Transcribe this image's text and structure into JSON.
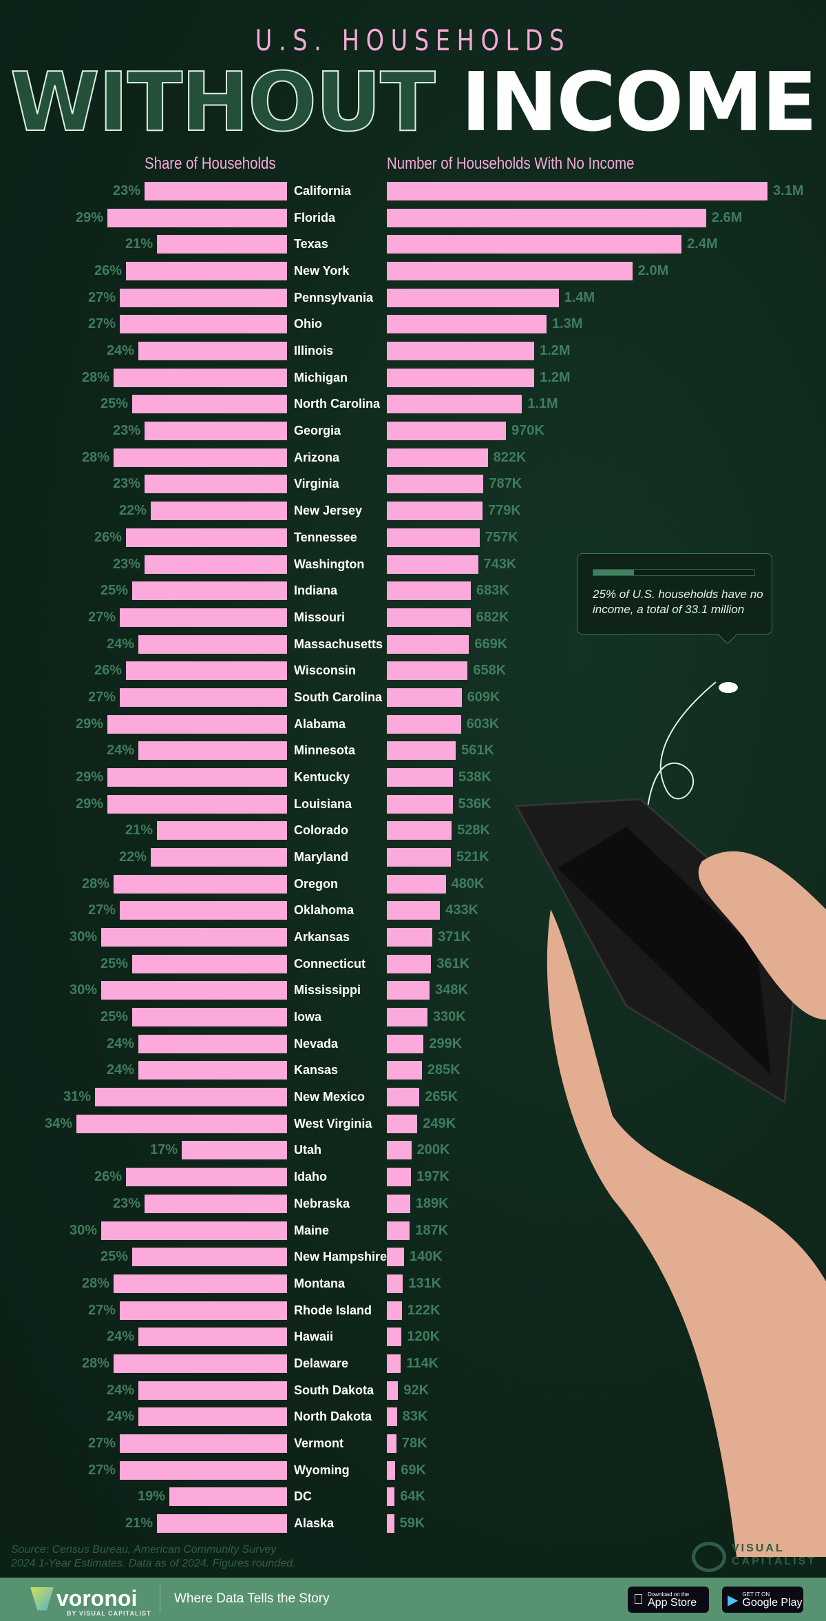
{
  "header": {
    "kicker": "U.S. HOUSEHOLDS",
    "title_outline": "WITHOUT",
    "title_solid": "INCOME"
  },
  "colors": {
    "bar": "#fca9dc",
    "label_green": "#3e7d5c",
    "background": "#0e2419",
    "footer": "#579371"
  },
  "chart_data": {
    "type": "bar",
    "left_title": "Share of Households",
    "right_title": "Number of Households With No Income",
    "categories": [
      "California",
      "Florida",
      "Texas",
      "New York",
      "Pennsylvania",
      "Ohio",
      "Illinois",
      "Michigan",
      "North Carolina",
      "Georgia",
      "Arizona",
      "Virginia",
      "New Jersey",
      "Tennessee",
      "Washington",
      "Indiana",
      "Missouri",
      "Massachusetts",
      "Wisconsin",
      "South Carolina",
      "Alabama",
      "Minnesota",
      "Kentucky",
      "Louisiana",
      "Colorado",
      "Maryland",
      "Oregon",
      "Oklahoma",
      "Arkansas",
      "Connecticut",
      "Mississippi",
      "Iowa",
      "Nevada",
      "Kansas",
      "New Mexico",
      "West Virginia",
      "Utah",
      "Idaho",
      "Nebraska",
      "Maine",
      "New Hampshire",
      "Montana",
      "Rhode Island",
      "Hawaii",
      "Delaware",
      "South Dakota",
      "North Dakota",
      "Vermont",
      "Wyoming",
      "DC",
      "Alaska"
    ],
    "series": [
      {
        "name": "Share of Households",
        "unit": "%",
        "values": [
          23,
          29,
          21,
          26,
          27,
          27,
          24,
          28,
          25,
          23,
          28,
          23,
          22,
          26,
          23,
          25,
          27,
          24,
          26,
          27,
          29,
          24,
          29,
          29,
          21,
          22,
          28,
          27,
          30,
          25,
          30,
          25,
          24,
          24,
          31,
          34,
          17,
          26,
          23,
          30,
          25,
          28,
          27,
          24,
          28,
          24,
          24,
          27,
          27,
          19,
          21
        ]
      },
      {
        "name": "Number of Households With No Income",
        "values": [
          3100000,
          2600000,
          2400000,
          2000000,
          1400000,
          1300000,
          1200000,
          1200000,
          1100000,
          970000,
          822000,
          787000,
          779000,
          757000,
          743000,
          683000,
          682000,
          669000,
          658000,
          609000,
          603000,
          561000,
          538000,
          536000,
          528000,
          521000,
          480000,
          433000,
          371000,
          361000,
          348000,
          330000,
          299000,
          285000,
          265000,
          249000,
          200000,
          197000,
          189000,
          187000,
          140000,
          131000,
          122000,
          120000,
          114000,
          92000,
          83000,
          78000,
          69000,
          64000,
          59000
        ],
        "labels": [
          "3.1M",
          "2.6M",
          "2.4M",
          "2.0M",
          "1.4M",
          "1.3M",
          "1.2M",
          "1.2M",
          "1.1M",
          "970K",
          "822K",
          "787K",
          "779K",
          "757K",
          "743K",
          "683K",
          "682K",
          "669K",
          "658K",
          "609K",
          "603K",
          "561K",
          "538K",
          "536K",
          "528K",
          "521K",
          "480K",
          "433K",
          "371K",
          "361K",
          "348K",
          "330K",
          "299K",
          "285K",
          "265K",
          "249K",
          "200K",
          "197K",
          "189K",
          "187K",
          "140K",
          "131K",
          "122K",
          "120K",
          "114K",
          "92K",
          "83K",
          "78K",
          "69K",
          "64K",
          "59K"
        ]
      }
    ]
  },
  "callout": {
    "text": "25% of U.S. households have no income, a total of 33.1 million",
    "progress_percent": 25
  },
  "footer": {
    "source": "Source: Census Bureau, American Community Survey",
    "source_line2": "2024 1-Year Estimates. Data as of 2024. Figures rounded.",
    "vc_line1": "VISUAL",
    "vc_line2": "CAPITALIST",
    "brand": "voronoi",
    "brand_sub": "BY VISUAL CAPITALIST",
    "tagline": "Where Data Tells the Story",
    "appstore_small": "Download on the",
    "appstore_big": "App Store",
    "googleplay_small": "GET IT ON",
    "googleplay_big": "Google Play"
  }
}
